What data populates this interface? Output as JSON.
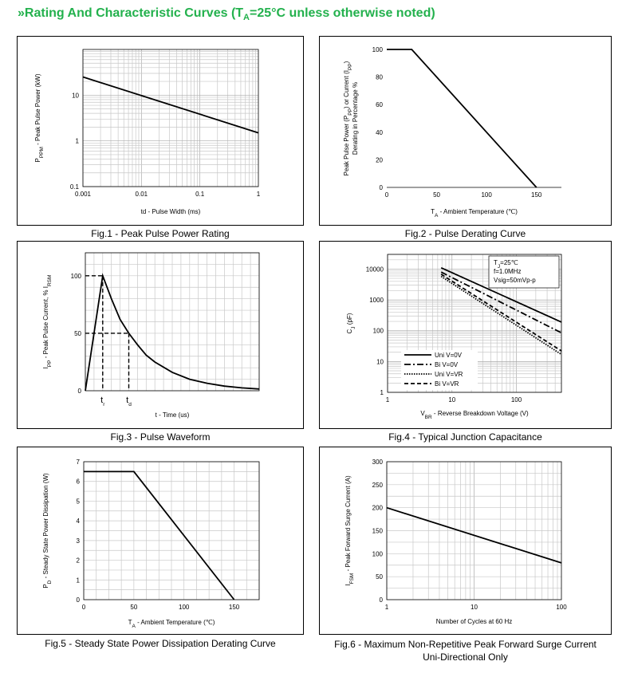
{
  "header": {
    "prefix": "»",
    "title_main": "Rating And Characteristic Curves (T",
    "title_sub": "A",
    "title_rest": "=25°C unless otherwise noted)"
  },
  "colors": {
    "header": "#23b14d",
    "grid": "#c8c8c8",
    "line": "#000000"
  },
  "captions": {
    "fig1": "Fig.1 - Peak Pulse Power Rating",
    "fig2": "Fig.2 - Pulse Derating Curve",
    "fig3": "Fig.3 - Pulse Waveform",
    "fig4": "Fig.4 - Typical Junction Capacitance",
    "fig5": "Fig.5 - Steady State Power Dissipation Derating Curve",
    "fig6_line1": "Fig.6 - Maximum Non-Repetitive Peak Forward Surge Current",
    "fig6_line2": "Uni-Directional Only"
  },
  "chart_data": [
    {
      "id": "fig1",
      "type": "line",
      "xscale": "log",
      "yscale": "log",
      "xlim": [
        0.001,
        1
      ],
      "ylim": [
        0.1,
        100
      ],
      "xticks": [
        "0.001",
        "0.01",
        "0.1",
        "1"
      ],
      "yticks": [
        "0.1",
        "1",
        "10"
      ],
      "xlabel": "td - Pulse Width (ms)",
      "ylabel": "PPPM - Peak Pulse Power (kW)",
      "ylabel_parts": {
        "a": "P",
        "sub": "PPM",
        "b": " - Peak Pulse Power (kW)"
      },
      "grid": true,
      "series": [
        {
          "x": [
            0.001,
            1
          ],
          "y": [
            25,
            1.5
          ]
        }
      ]
    },
    {
      "id": "fig2",
      "type": "line",
      "xlim": [
        0,
        175
      ],
      "ylim": [
        0,
        100
      ],
      "xticks": [
        "0",
        "50",
        "100",
        "150"
      ],
      "yticks": [
        "0",
        "20",
        "40",
        "60",
        "80",
        "100"
      ],
      "xlabel": "TA - Ambient Temperature (℃)",
      "xlabel_parts": {
        "a": "T",
        "sub": "A",
        "b": " - Ambient Temperature (℃)"
      },
      "ylabel_line1": "Peak Pulse Power (PPP) or Current (IPP)",
      "ylabel_line1_parts": {
        "a": "Peak Pulse Power (P",
        "sub1": "PP",
        "b": ") or Current (I",
        "sub2": "PP",
        "c": ")"
      },
      "ylabel_line2": "Derating in Percentage %",
      "grid": false,
      "series": [
        {
          "x": [
            0,
            25,
            150
          ],
          "y": [
            100,
            100,
            0
          ]
        }
      ]
    },
    {
      "id": "fig3",
      "type": "line",
      "xlim": [
        0,
        10
      ],
      "ylim": [
        0,
        120
      ],
      "yticks": [
        "0",
        "50",
        "100"
      ],
      "xlabel": "t - Time (us)",
      "ylabel": "IPP - Peak Pulse Current, % IRSM",
      "ylabel_parts": {
        "a": "I",
        "sub1": "PP",
        "b": " - Peak Pulse Current, % I",
        "sub2": "RSM"
      },
      "markers": [
        {
          "label": "t",
          "sub": "r",
          "x": 1
        },
        {
          "label": "t",
          "sub": "d",
          "x": 2.5
        }
      ],
      "grid": true,
      "series": [
        {
          "x": [
            0,
            1,
            1.5,
            2,
            2.5,
            3,
            3.5,
            4,
            5,
            6,
            7,
            8,
            9,
            10
          ],
          "y": [
            0,
            100,
            80,
            62,
            50,
            40,
            31,
            25,
            16,
            10,
            6.5,
            4,
            2.5,
            1.5
          ]
        }
      ]
    },
    {
      "id": "fig4",
      "type": "line",
      "xscale": "log",
      "yscale": "log",
      "xlim": [
        1,
        500
      ],
      "ylim": [
        1,
        30000
      ],
      "xticks": [
        "1",
        "10",
        "100"
      ],
      "yticks": [
        "1",
        "10",
        "100",
        "1000",
        "10000"
      ],
      "xlabel": "VBR - Reverse Breakdown Voltage (V)",
      "xlabel_parts": {
        "a": "V",
        "sub": "BR",
        "b": " - Reverse Breakdown Voltage (V)"
      },
      "ylabel": "CJ (pF)",
      "ylabel_parts": {
        "a": "C",
        "sub": "J",
        "b": " (pF)"
      },
      "grid": true,
      "conditions": [
        "TJ=25℃",
        "f=1.0MHz",
        "Vsig=50mVp-p"
      ],
      "conditions_first": {
        "a": "T",
        "sub": "J",
        "b": "=25℃"
      },
      "legend": "bottom-left",
      "series": [
        {
          "name": "Uni V=0V",
          "dash": "solid",
          "x": [
            6.8,
            500
          ],
          "y": [
            11000,
            190
          ]
        },
        {
          "name": "Bi V=0V",
          "dash": "dashdot",
          "x": [
            6.8,
            500
          ],
          "y": [
            8000,
            85
          ]
        },
        {
          "name": "Uni V=VR",
          "dash": "dotted",
          "x": [
            6.8,
            500
          ],
          "y": [
            5800,
            17
          ]
        },
        {
          "name": "Bi V=VR",
          "dash": "dashed",
          "x": [
            6.8,
            500
          ],
          "y": [
            6800,
            22
          ]
        }
      ]
    },
    {
      "id": "fig5",
      "type": "line",
      "xlim": [
        0,
        175
      ],
      "ylim": [
        0,
        7
      ],
      "xticks": [
        "0",
        "50",
        "100",
        "150"
      ],
      "yticks": [
        "0",
        "1",
        "2",
        "3",
        "4",
        "5",
        "6",
        "7"
      ],
      "xlabel": "TA - Ambient Temperature (℃)",
      "xlabel_parts": {
        "a": "T",
        "sub": "A",
        "b": " - Ambient Temperature (℃)"
      },
      "ylabel": "PD - Steady State Power Dissipation (W)",
      "ylabel_parts": {
        "a": "P",
        "sub": "D",
        "b": " - Steady State Power Dissipation (W)"
      },
      "grid": true,
      "series": [
        {
          "x": [
            0,
            50,
            150
          ],
          "y": [
            6.5,
            6.5,
            0
          ]
        }
      ]
    },
    {
      "id": "fig6",
      "type": "line",
      "xscale": "log",
      "xlim": [
        1,
        100
      ],
      "ylim": [
        0,
        300
      ],
      "xticks": [
        "1",
        "10",
        "100"
      ],
      "yticks": [
        "0",
        "50",
        "100",
        "150",
        "200",
        "250",
        "300"
      ],
      "xlabel": "Number of Cycles at 60 Hz",
      "ylabel": "IFSM - Peak Forward Surge Current (A)",
      "ylabel_parts": {
        "a": "I",
        "sub": "FSM",
        "b": " - Peak Forward Surge Current (A)"
      },
      "grid": true,
      "series": [
        {
          "x": [
            1,
            100
          ],
          "y": [
            200,
            80
          ]
        }
      ]
    }
  ]
}
